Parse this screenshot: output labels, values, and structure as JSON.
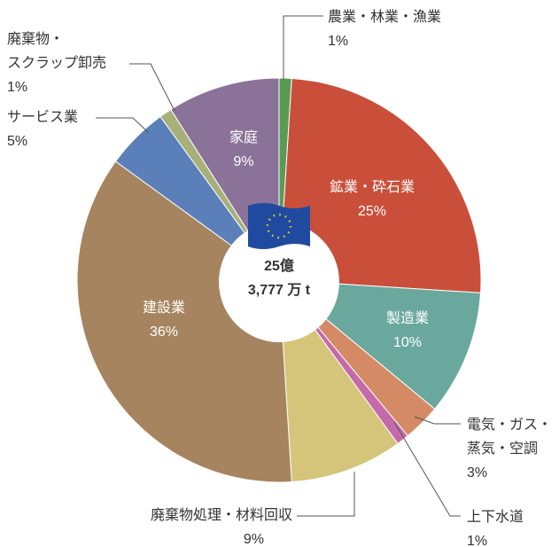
{
  "chart_data": {
    "type": "pie",
    "categories": [
      [
        "農業・林業・漁業"
      ],
      [
        "鉱業・砕石業"
      ],
      [
        "製造業"
      ],
      [
        "電気・ガス・",
        "蒸気・空調"
      ],
      [
        "上下水道"
      ],
      [
        "廃棄物処理・材料回収"
      ],
      [
        "建設業"
      ],
      [
        "サービス業"
      ],
      [
        "廃棄物・",
        "スクラップ卸売"
      ],
      [
        "家庭"
      ]
    ],
    "values": [
      1,
      25,
      10,
      3,
      1,
      9,
      36,
      5,
      1,
      9
    ],
    "value_labels": [
      "1%",
      "25%",
      "10%",
      "3%",
      "1%",
      "9%",
      "36%",
      "5%",
      "1%",
      "9%"
    ],
    "colors": [
      "#5a9a55",
      "#c94f3a",
      "#6aa89e",
      "#d48a64",
      "#c56aa8",
      "#d4c57a",
      "#a6845f",
      "#5b7fb8",
      "#a8b07a",
      "#8b7299"
    ],
    "center_label": [
      "25億",
      "3,777 万 t"
    ]
  }
}
